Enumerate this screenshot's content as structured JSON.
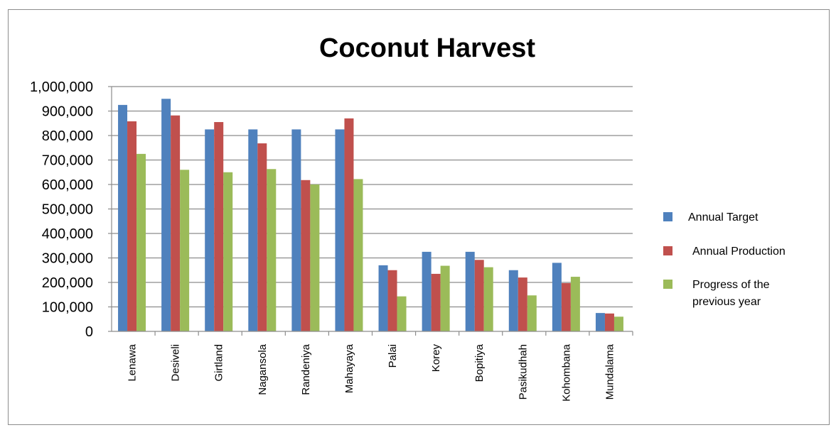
{
  "chart_data": {
    "type": "bar",
    "title": "Coconut Harvest",
    "xlabel": "",
    "ylabel": "",
    "ylim": [
      0,
      1000000
    ],
    "y_ticks": [
      "0",
      "100,000",
      "200,000",
      "300,000",
      "400,000",
      "500,000",
      "600,000",
      "700,000",
      "800,000",
      "900,000",
      "1,000,000"
    ],
    "grid": true,
    "legend_position": "right",
    "categories": [
      "Lenawa",
      "Desiveli",
      "Girtland",
      "Nagansola",
      "Randeniya",
      "Mahayaya",
      "Palai",
      "Korey",
      "Bopitiya",
      "Pasikudhah",
      "Kohombana",
      "Mundalama"
    ],
    "series": [
      {
        "name": "Annual Target",
        "color": "#4f81bd",
        "values": [
          925000,
          950000,
          825000,
          825000,
          825000,
          825000,
          270000,
          325000,
          325000,
          250000,
          280000,
          75000
        ]
      },
      {
        "name": "Annual Production",
        "color": "#c0504d",
        "values": [
          858000,
          882000,
          855000,
          768000,
          618000,
          870000,
          250000,
          235000,
          292000,
          220000,
          197000,
          73000
        ]
      },
      {
        "name": "Progress of the previous year",
        "color": "#9bbb59",
        "values": [
          725000,
          660000,
          650000,
          663000,
          600000,
          622000,
          143000,
          268000,
          262000,
          147000,
          223000,
          60000
        ]
      }
    ]
  }
}
